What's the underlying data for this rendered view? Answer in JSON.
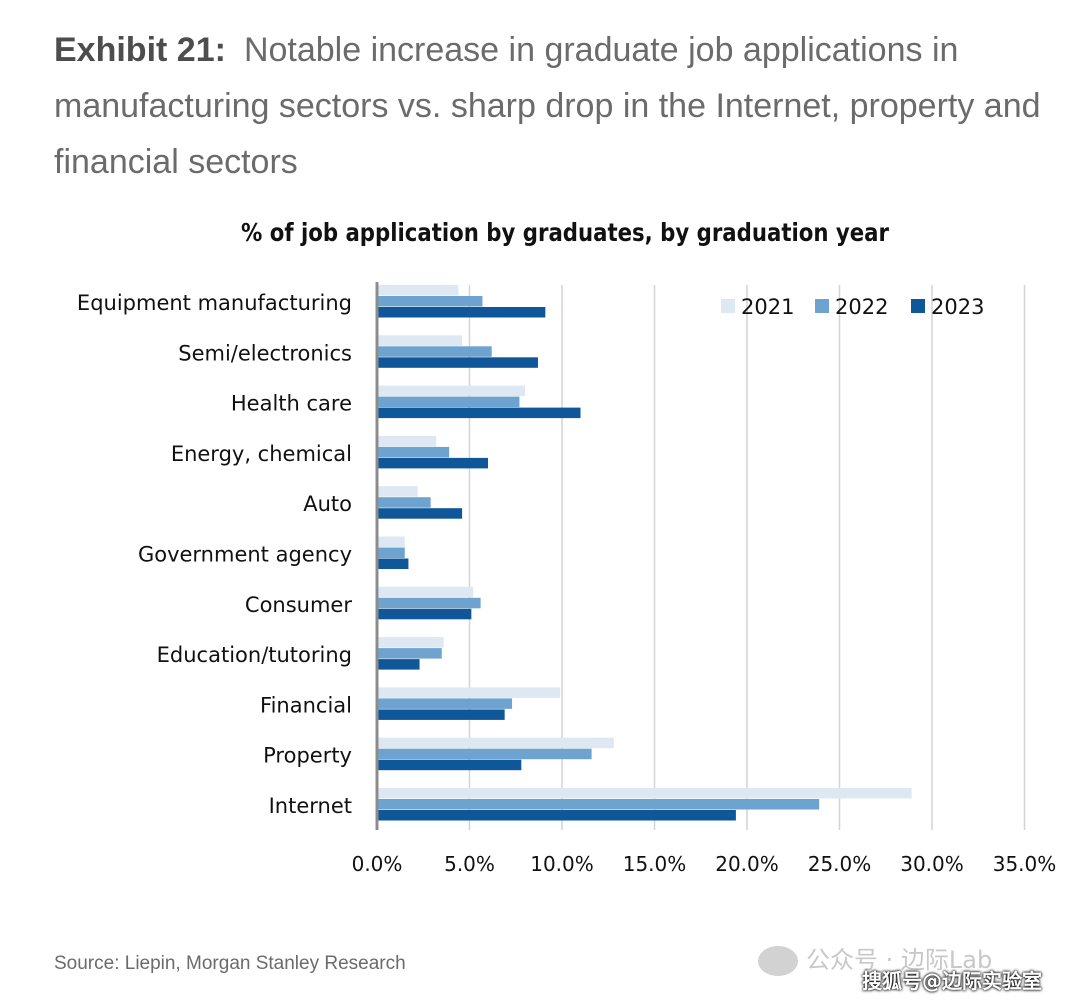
{
  "exhibit": {
    "label": "Exhibit 21:",
    "text": "Notable increase in graduate job applications in manufacturing sectors vs. sharp drop in the Internet, property and financial sectors"
  },
  "chart_data": {
    "type": "bar",
    "orientation": "horizontal",
    "title": "% of job application by graduates, by graduation year",
    "categories": [
      "Equipment manufacturing",
      "Semi/electronics",
      "Health care",
      "Energy, chemical",
      "Auto",
      "Government agency",
      "Consumer",
      "Education/tutoring",
      "Financial",
      "Property",
      "Internet"
    ],
    "series": [
      {
        "name": "2021",
        "color": "#dde8f2",
        "values": [
          4.4,
          4.6,
          8.0,
          3.2,
          2.2,
          1.5,
          5.2,
          3.6,
          9.9,
          12.8,
          28.9
        ]
      },
      {
        "name": "2022",
        "color": "#6fa3cf",
        "values": [
          5.7,
          6.2,
          7.7,
          3.9,
          2.9,
          1.5,
          5.6,
          3.5,
          7.3,
          11.6,
          23.9
        ]
      },
      {
        "name": "2023",
        "color": "#0f5799",
        "values": [
          9.1,
          8.7,
          11.0,
          6.0,
          4.6,
          1.7,
          5.1,
          2.3,
          6.9,
          7.8,
          19.4
        ]
      }
    ],
    "xlim": [
      0,
      35
    ],
    "xticks": [
      "0.0%",
      "5.0%",
      "10.0%",
      "15.0%",
      "20.0%",
      "25.0%",
      "30.0%",
      "35.0%"
    ],
    "grid": true,
    "legend": "top-right"
  },
  "source": "Source: Liepin, Morgan Stanley Research",
  "watermarks": {
    "line1": "公众号 · 边际Lab",
    "line2": "搜狐号@边际实验室"
  }
}
